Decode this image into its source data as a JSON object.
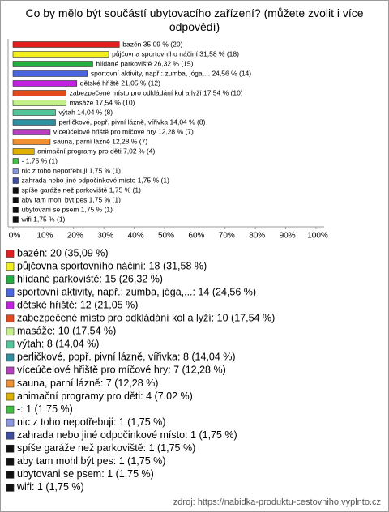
{
  "chart_data": {
    "type": "barh",
    "title": "Co by mělo být součástí ubytovacího zařízení? (můžete zvolit i více odpovědí)",
    "values": [
      35.09,
      31.58,
      26.32,
      24.56,
      21.05,
      17.54,
      17.54,
      14.04,
      14.04,
      12.28,
      12.28,
      7.02,
      1.75,
      1.75,
      1.75,
      1.75,
      1.75,
      1.75,
      1.75
    ],
    "value_labels": [
      "bazén 35,09 % (20)",
      "půjčovna sportovního náčiní 31,58 % (18)",
      "hlídané parkoviště 26,32 % (15)",
      "sportovní aktivity, např.: zumba, jóga,... 24,56 % (14)",
      "dětské hřiště 21,05 % (12)",
      "zabezpečené místo pro odkládání kol a lyží 17,54 % (10)",
      "masáže 17,54 % (10)",
      "výtah 14,04 % (8)",
      "perličkové, popř. pivní lázně, vířivka 14,04 % (8)",
      "víceúčelové hřiště pro míčové hry 12,28 % (7)",
      "sauna, parní lázně 12,28 % (7)",
      "animační programy pro děti 7,02 % (4)",
      "- 1,75 % (1)",
      "nic z toho nepotřebuji 1,75 % (1)",
      "zahrada nebo jiné odpočinkové místo 1,75 % (1)",
      "spíše garáže než parkoviště 1,75 % (1)",
      "aby tam mohl být pes 1,75 % (1)",
      "ubytovani se psem 1,75 % (1)",
      "wifi 1,75 % (1)"
    ],
    "legend": [
      "bazén: 20 (35,09 %)",
      "půjčovna sportovního náčiní: 18 (31,58 %)",
      "hlídané parkoviště: 15 (26,32 %)",
      "sportovní aktivity, např.: zumba, jóga,...: 14 (24,56 %)",
      "dětské hřiště: 12 (21,05 %)",
      "zabezpečené místo pro odkládání kol a lyží: 10 (17,54 %)",
      "masáže: 10 (17,54 %)",
      "výtah: 8 (14,04 %)",
      "perličkové, popř. pivní lázně, vířivka: 8 (14,04 %)",
      "víceúčelové hřiště pro míčové hry: 7 (12,28 %)",
      "sauna, parní lázně: 7 (12,28 %)",
      "animační programy pro děti: 4 (7,02 %)",
      "-: 1 (1,75 %)",
      "nic z toho nepotřebuji: 1 (1,75 %)",
      "zahrada nebo jiné odpočinkové místo: 1 (1,75 %)",
      "spíše garáže než parkoviště: 1 (1,75 %)",
      "aby tam mohl být pes: 1 (1,75 %)",
      "ubytovani se psem: 1 (1,75 %)",
      "wifi: 1 (1,75 %)"
    ],
    "colors": [
      "#e02020",
      "#f2ee20",
      "#22b040",
      "#4a66e0",
      "#c020e0",
      "#e24a1e",
      "#c4f08a",
      "#52c49a",
      "#2f8fa0",
      "#b840c0",
      "#f09030",
      "#e0b000",
      "#40c040",
      "#8a98e4",
      "#3e4ea0",
      "#111111",
      "#111111",
      "#111111",
      "#111111"
    ],
    "xlim": [
      0,
      100
    ],
    "xticks": [
      {
        "value": 0,
        "label": "0%"
      },
      {
        "value": 10,
        "label": "10%"
      },
      {
        "value": 20,
        "label": "20%"
      },
      {
        "value": 30,
        "label": "30%"
      },
      {
        "value": 40,
        "label": "40%"
      },
      {
        "value": 50,
        "label": "50%"
      },
      {
        "value": 60,
        "label": "60%"
      },
      {
        "value": 70,
        "label": "70%"
      },
      {
        "value": 80,
        "label": "80%"
      },
      {
        "value": 90,
        "label": "90%"
      },
      {
        "value": 100,
        "label": "100%"
      }
    ],
    "source": "zdroj: https://nabidka-produktu-cestovniho.vyplnto.cz"
  }
}
